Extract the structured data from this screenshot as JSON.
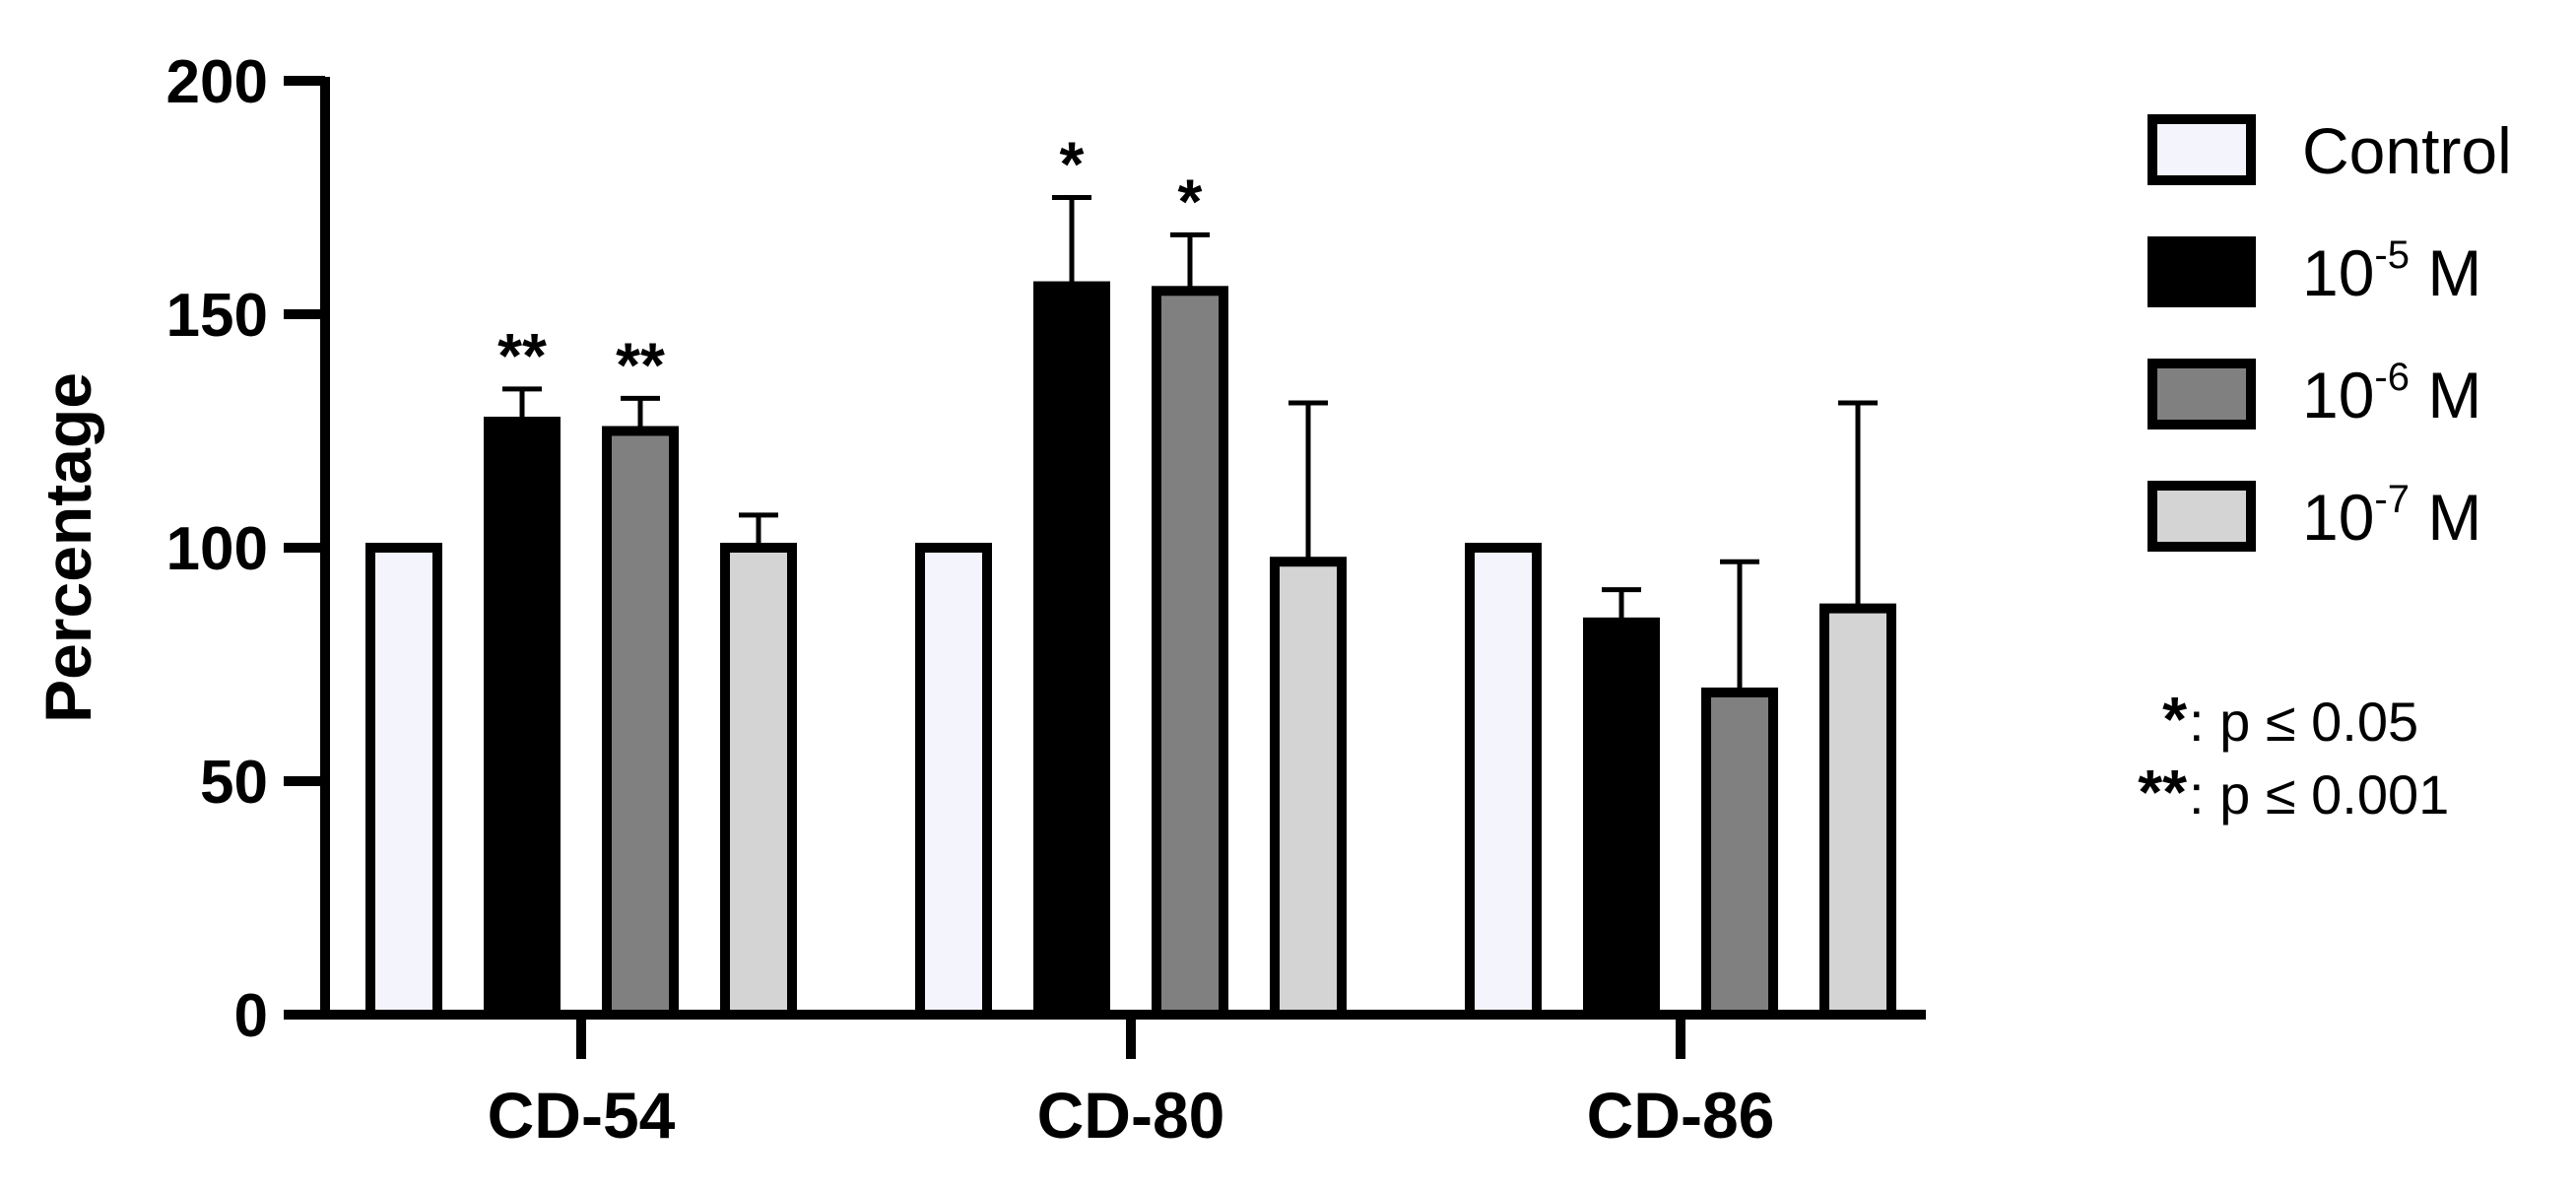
{
  "chart_data": {
    "type": "bar",
    "title": "",
    "xlabel": "",
    "ylabel": "Percentage",
    "ylim": [
      0,
      200
    ],
    "yticks": [
      "0",
      "50",
      "100",
      "150",
      "200"
    ],
    "categories": [
      "CD-54",
      "CD-80",
      "CD-86"
    ],
    "series": [
      {
        "name": "Control",
        "legend_base": "Control",
        "legend_exp": "",
        "legend_unit": "",
        "color": "#f4f4fc",
        "values": [
          100,
          100,
          100
        ],
        "errors": [
          0,
          0,
          0
        ],
        "significance": [
          "",
          "",
          ""
        ]
      },
      {
        "name": "10-5 M",
        "legend_base": "10",
        "legend_exp": "-5",
        "legend_unit": " M",
        "color": "#000000",
        "values": [
          127,
          156,
          84
        ],
        "errors": [
          7,
          19,
          7
        ],
        "significance": [
          "**",
          "*",
          ""
        ]
      },
      {
        "name": "10-6 M",
        "legend_base": "10",
        "legend_exp": "-6",
        "legend_unit": " M",
        "color": "#808080",
        "values": [
          125,
          155,
          69
        ],
        "errors": [
          7,
          12,
          28
        ],
        "significance": [
          "**",
          "*",
          ""
        ]
      },
      {
        "name": "10-7 M",
        "legend_base": "10",
        "legend_exp": "-7",
        "legend_unit": " M",
        "color": "#d4d4d4",
        "values": [
          100,
          97,
          87
        ],
        "errors": [
          7,
          34,
          44
        ],
        "significance": [
          "",
          "",
          ""
        ]
      }
    ],
    "legend_position": "right",
    "grid": false,
    "annotations": {
      "note1_symbol": "*",
      "note1_text": ": p ≤ 0.05",
      "note2_symbol": "**",
      "note2_text": ": p ≤ 0.001"
    }
  }
}
